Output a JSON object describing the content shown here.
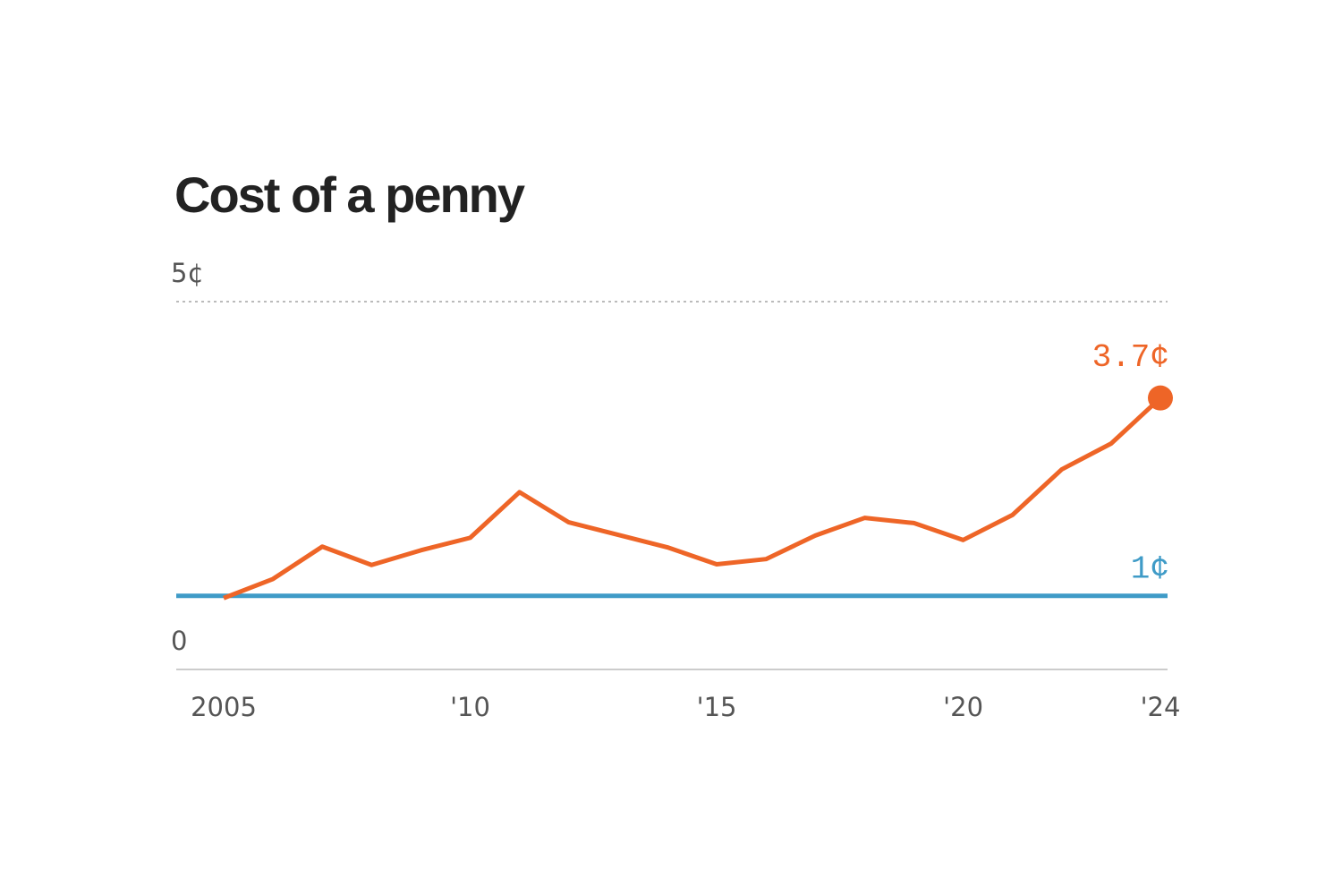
{
  "chart_data": {
    "type": "line",
    "title": "Cost of a penny",
    "x": [
      2005,
      2006,
      2007,
      2008,
      2009,
      2010,
      2011,
      2012,
      2013,
      2014,
      2015,
      2016,
      2017,
      2018,
      2019,
      2020,
      2021,
      2022,
      2023,
      2024
    ],
    "series": [
      {
        "name": "Cost of a penny",
        "color": "#ee6527",
        "values": [
          0.97,
          1.23,
          1.67,
          1.42,
          1.62,
          1.79,
          2.41,
          2.0,
          1.83,
          1.66,
          1.43,
          1.5,
          1.82,
          2.06,
          1.99,
          1.76,
          2.1,
          2.72,
          3.07,
          3.69
        ],
        "value_labels": [
          null,
          null,
          null,
          null,
          null,
          null,
          null,
          null,
          null,
          null,
          null,
          null,
          null,
          null,
          null,
          null,
          null,
          null,
          null,
          "3.7¢"
        ]
      }
    ],
    "reference_lines": [
      {
        "value": 1,
        "label": "1¢",
        "color": "#3f9bc7"
      }
    ],
    "xlim": [
      2004,
      2024.2
    ],
    "xticks": [
      {
        "value": 2005,
        "label": "2005"
      },
      {
        "value": 2010,
        "label": "'10"
      },
      {
        "value": 2015,
        "label": "'15"
      },
      {
        "value": 2020,
        "label": "'20"
      },
      {
        "value": 2024,
        "label": "'24"
      }
    ],
    "ylim": [
      0,
      5
    ],
    "yticks": [
      0,
      {
        "value": 5,
        "label": "5¢"
      }
    ],
    "grid": true
  }
}
